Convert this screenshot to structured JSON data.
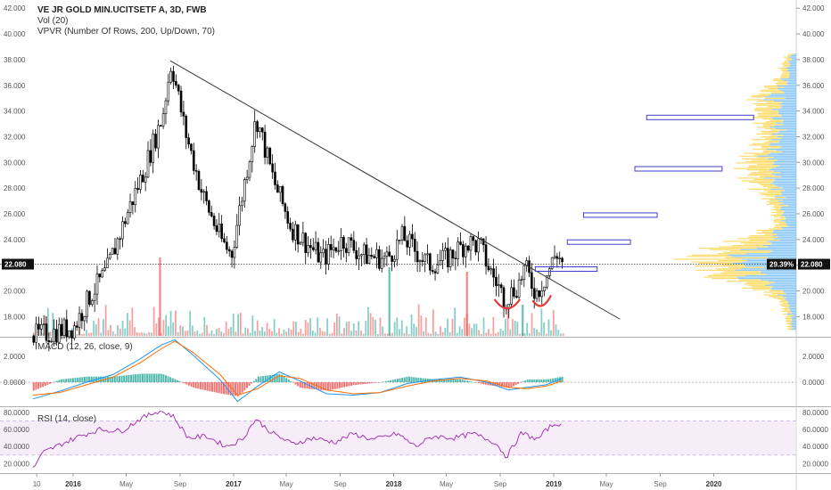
{
  "legends": {
    "title": "VE JR GOLD MIN.UCITSETF A, 3D, FWB",
    "volume": "Vol (20)",
    "vpvr": "VPVR (Number Of Rows, 200, Up/Down, 70)",
    "macd": "MACD (12, 26, close, 9)",
    "rsi": "RSI (14, close)"
  },
  "colors": {
    "up": "#26a69a",
    "down": "#ef5350",
    "candle": "#000000",
    "macd_line": "#2196f3",
    "signal_line": "#ff6d00",
    "rsi_line": "#9c27b0",
    "rsi_band": "#f3e5f5",
    "vpvr_blue": "#64b5f6",
    "vpvr_yellow": "#ffd54f",
    "box": "#3f3fd0"
  },
  "chart_data": [
    {
      "type": "candlestick",
      "title": "VE JR GOLD MIN.UCITSETF A, 3D, FWB",
      "ylim": [
        16.5,
        42.5
      ],
      "y_ticks": [
        "18.000",
        "20.000",
        "22.000",
        "24.000",
        "26.000",
        "28.000",
        "30.000",
        "32.000",
        "34.000",
        "36.000",
        "38.000",
        "40.000",
        "42.000"
      ],
      "y_tick_values": [
        18,
        20,
        22,
        24,
        26,
        28,
        30,
        32,
        34,
        36,
        38,
        40,
        42
      ],
      "last_price_label": "22.080",
      "last_price": 22.08,
      "vpvr_percent_label": "29.39%",
      "x_ticks": [
        "10",
        "2016",
        "May",
        "Sep",
        "2017",
        "May",
        "Sep",
        "2018",
        "May",
        "Sep",
        "2019",
        "May",
        "Sep",
        "2020"
      ],
      "price_path_dates": [
        "2015-10-01",
        "2015-11-15",
        "2016-01-01",
        "2016-02-10",
        "2016-03-15",
        "2016-05-01",
        "2016-06-10",
        "2016-07-20",
        "2016-08-10",
        "2016-09-10",
        "2016-10-20",
        "2016-12-01",
        "2016-12-25",
        "2017-02-01",
        "2017-02-20",
        "2017-04-01",
        "2017-05-10",
        "2017-06-20",
        "2017-07-20",
        "2017-09-05",
        "2017-10-20",
        "2017-12-15",
        "2018-01-20",
        "2018-02-15",
        "2018-03-20",
        "2018-05-01",
        "2018-06-15",
        "2018-07-15",
        "2018-08-01",
        "2018-09-10",
        "2018-10-10",
        "2018-10-25",
        "2018-11-20",
        "2018-12-15",
        "2019-01-05",
        "2019-01-20"
      ],
      "price_path_values": [
        16.5,
        16.8,
        17.2,
        19.8,
        21.5,
        26.0,
        29.5,
        33.5,
        37.8,
        32.5,
        27.5,
        24.0,
        22.8,
        30.0,
        33.5,
        28.5,
        25.0,
        23.5,
        22.5,
        24.0,
        22.8,
        22.5,
        24.2,
        23.2,
        22.0,
        22.5,
        23.8,
        23.5,
        22.0,
        19.3,
        20.5,
        21.8,
        19.8,
        21.3,
        23.0,
        22.1
      ],
      "trendline": {
        "from": [
          "2016-08-10",
          37.9
        ],
        "to": [
          "2019-06-01",
          17.8
        ]
      },
      "vpvr_boxes": [
        {
          "price": 33.5,
          "left_date": "2019-08-01",
          "right_date": "2020-04-01"
        },
        {
          "price": 29.5,
          "left_date": "2019-07-05",
          "right_date": "2020-01-20"
        },
        {
          "price": 25.9,
          "left_date": "2019-03-10",
          "right_date": "2019-08-25"
        },
        {
          "price": 23.8,
          "left_date": "2019-02-01",
          "right_date": "2019-06-25"
        },
        {
          "price": 21.7,
          "left_date": "2018-11-20",
          "right_date": "2019-04-10"
        }
      ],
      "annotation_arcs": [
        {
          "start": [
            "2018-08-20",
            19.3
          ],
          "end": [
            "2018-10-15",
            19.3
          ],
          "depth": 18.4
        },
        {
          "start": [
            "2018-11-15",
            19.2
          ],
          "end": [
            "2018-12-25",
            19.6
          ],
          "depth": 18.7
        }
      ]
    },
    {
      "type": "bar",
      "title": "Vol (20)",
      "note": "volume histogram overlay, relative bar heights",
      "highlights": [
        {
          "date": "2016-07-15",
          "value": 0.88,
          "up": false
        },
        {
          "date": "2017-12-20",
          "value": 0.77,
          "up": true
        },
        {
          "date": "2018-06-15",
          "value": 0.72,
          "up": false
        },
        {
          "date": "2018-10-20",
          "value": 0.35,
          "up": true
        }
      ]
    },
    {
      "type": "line",
      "title": "MACD (12, 26, close, 9)",
      "ylim": [
        -1.8,
        3.4
      ],
      "y_ticks": [
        "0.0000",
        "2.0000"
      ],
      "y_tick_values": [
        0,
        2
      ],
      "dates": [
        "2015-10-01",
        "2015-12-01",
        "2016-02-01",
        "2016-04-01",
        "2016-06-01",
        "2016-07-20",
        "2016-08-20",
        "2016-10-01",
        "2016-12-01",
        "2017-01-10",
        "2017-02-25",
        "2017-04-15",
        "2017-06-01",
        "2017-08-01",
        "2017-10-01",
        "2017-12-01",
        "2018-02-01",
        "2018-04-01",
        "2018-06-01",
        "2018-08-01",
        "2018-09-20",
        "2018-11-01",
        "2018-12-15",
        "2019-01-20"
      ],
      "macd": [
        -1.3,
        -0.7,
        0.0,
        0.6,
        1.8,
        2.9,
        3.3,
        2.1,
        0.2,
        -1.5,
        -0.3,
        0.8,
        0.1,
        -0.9,
        -1.0,
        -0.8,
        -0.1,
        0.2,
        0.4,
        0.0,
        -0.6,
        -0.4,
        -0.2,
        0.3
      ],
      "signal": [
        -1.0,
        -0.8,
        -0.2,
        0.4,
        1.5,
        2.6,
        3.2,
        2.3,
        0.6,
        -1.0,
        -0.5,
        0.5,
        0.3,
        -0.6,
        -0.9,
        -0.8,
        -0.3,
        0.1,
        0.3,
        0.1,
        -0.4,
        -0.5,
        -0.3,
        0.1
      ]
    },
    {
      "type": "line",
      "title": "RSI (14, close)",
      "ylim": [
        10,
        85
      ],
      "y_ticks": [
        "20.0000",
        "40.0000",
        "60.0000",
        "80.0000"
      ],
      "y_tick_values": [
        20,
        40,
        60,
        80
      ],
      "band": [
        30,
        70
      ],
      "dates": [
        "2015-10-01",
        "2015-10-25",
        "2015-12-01",
        "2016-01-15",
        "2016-03-01",
        "2016-04-20",
        "2016-06-01",
        "2016-07-15",
        "2016-08-15",
        "2016-09-20",
        "2016-11-01",
        "2016-12-15",
        "2017-01-20",
        "2017-02-20",
        "2017-04-01",
        "2017-05-15",
        "2017-07-01",
        "2017-08-20",
        "2017-10-01",
        "2017-11-15",
        "2018-01-10",
        "2018-02-20",
        "2018-04-01",
        "2018-05-20",
        "2018-07-01",
        "2018-08-20",
        "2018-09-15",
        "2018-10-20",
        "2018-11-25",
        "2018-12-20",
        "2019-01-10",
        "2019-01-22"
      ],
      "values": [
        14,
        33,
        42,
        52,
        60,
        58,
        72,
        82,
        76,
        50,
        52,
        40,
        48,
        72,
        55,
        43,
        50,
        45,
        55,
        48,
        55,
        40,
        52,
        50,
        55,
        45,
        28,
        56,
        48,
        62,
        68,
        62
      ]
    }
  ]
}
